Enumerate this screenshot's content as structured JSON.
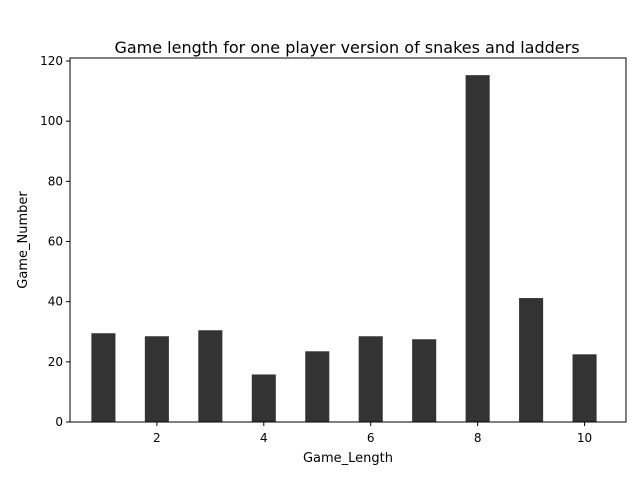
{
  "chart_data": {
    "type": "bar",
    "title": "Game length for one player version of snakes and ladders",
    "xlabel": "Game_Length",
    "ylabel": "Game_Number",
    "x": [
      1,
      2,
      3,
      4,
      5,
      6,
      7,
      8,
      9,
      10
    ],
    "values": [
      29.5,
      28.5,
      30.5,
      15.8,
      23.5,
      28.5,
      27.5,
      115.3,
      41.2,
      22.5
    ],
    "bar_width": 0.45,
    "xlim": [
      0.375,
      10.775
    ],
    "ylim": [
      0,
      121
    ],
    "xticks": [
      2,
      4,
      6,
      8,
      10
    ],
    "yticks": [
      0,
      20,
      40,
      60,
      80,
      100,
      120
    ],
    "bar_color": "#333333",
    "grid": false,
    "legend": "none"
  }
}
